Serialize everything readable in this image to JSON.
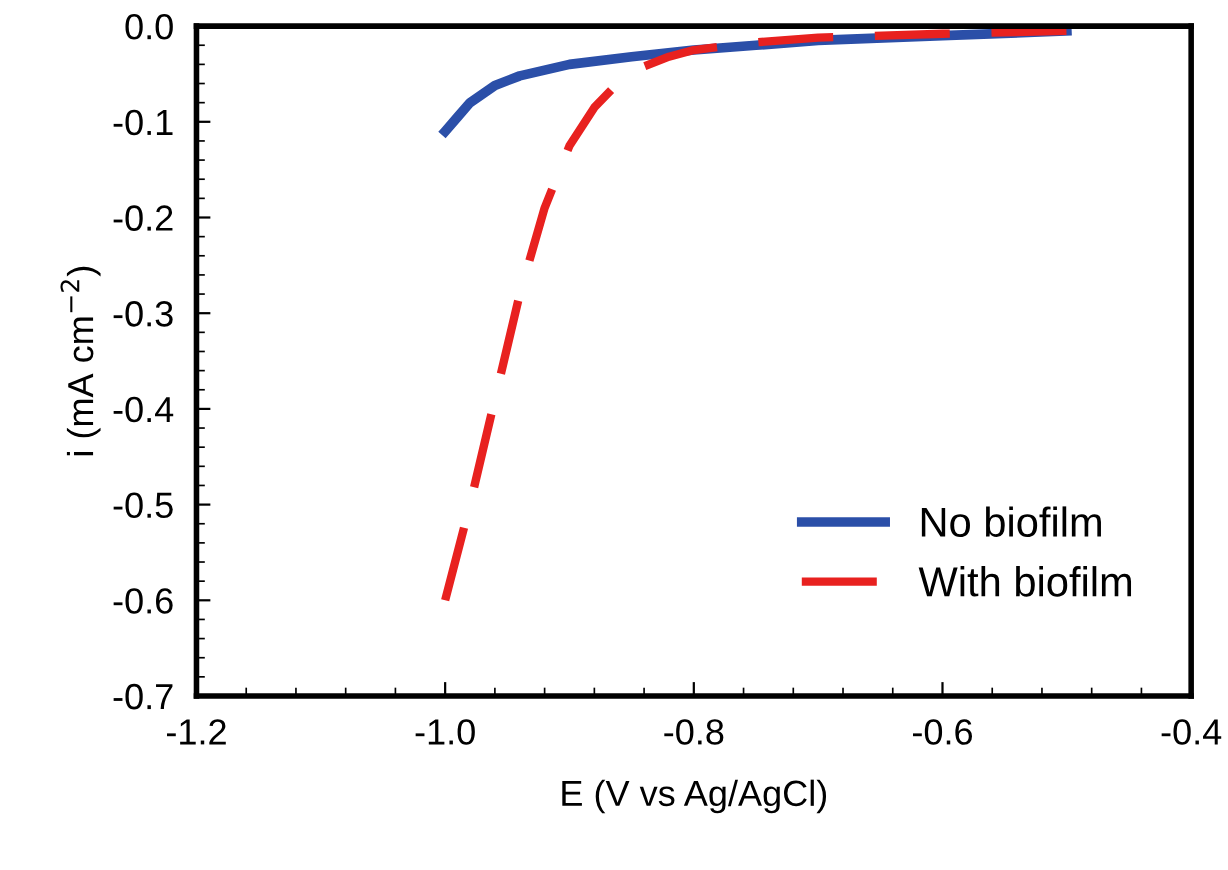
{
  "chart_data": {
    "type": "line",
    "xlabel": "E (V vs Ag/AgCl)",
    "ylabel": "i (mA cm$^{−2}$)",
    "xlim": [
      -1.2,
      -0.4
    ],
    "xticks": [
      {
        "value": -1.2,
        "label": "-1.2"
      },
      {
        "value": -1.0,
        "label": "-1.0"
      },
      {
        "value": -0.8,
        "label": "-0.8"
      },
      {
        "value": -0.6,
        "label": "-0.6"
      },
      {
        "value": -0.4,
        "label": "-0.4"
      }
    ],
    "ylim": [
      -0.7,
      0
    ],
    "yticks": [
      {
        "value": 0,
        "label": "0.0"
      },
      {
        "value": -0.1,
        "label": "-0.1"
      },
      {
        "value": -0.2,
        "label": "-0.2"
      },
      {
        "value": -0.3,
        "label": "-0.3"
      },
      {
        "value": -0.4,
        "label": "-0.4"
      },
      {
        "value": -0.5,
        "label": "-0.5"
      },
      {
        "value": -0.6,
        "label": "-0.6"
      },
      {
        "value": -0.7,
        "label": "-0.7"
      }
    ],
    "grid": false,
    "legend": "bottom right",
    "series": [
      {
        "name": "No biofilm",
        "color": "#2b4fa8",
        "line_style": "solid",
        "x": [
          -1.0,
          -0.99,
          -0.98,
          -0.96,
          -0.94,
          -0.92,
          -0.9,
          -0.85,
          -0.8,
          -0.75,
          -0.7,
          -0.6,
          -0.5
        ],
        "values": [
          -0.11,
          -0.095,
          -0.08,
          -0.062,
          -0.052,
          -0.046,
          -0.04,
          -0.032,
          -0.025,
          -0.02,
          -0.015,
          -0.01,
          -0.005
        ]
      },
      {
        "name": "With biofilm",
        "color": "#e8211f",
        "line_style": "dashed",
        "x": [
          -1.0,
          -0.98,
          -0.96,
          -0.94,
          -0.92,
          -0.9,
          -0.88,
          -0.86,
          -0.84,
          -0.82,
          -0.8,
          -0.75,
          -0.7,
          -0.6,
          -0.5
        ],
        "values": [
          -0.6,
          -0.5,
          -0.39,
          -0.28,
          -0.19,
          -0.125,
          -0.085,
          -0.058,
          -0.042,
          -0.032,
          -0.025,
          -0.017,
          -0.012,
          -0.008,
          -0.005
        ]
      }
    ]
  }
}
